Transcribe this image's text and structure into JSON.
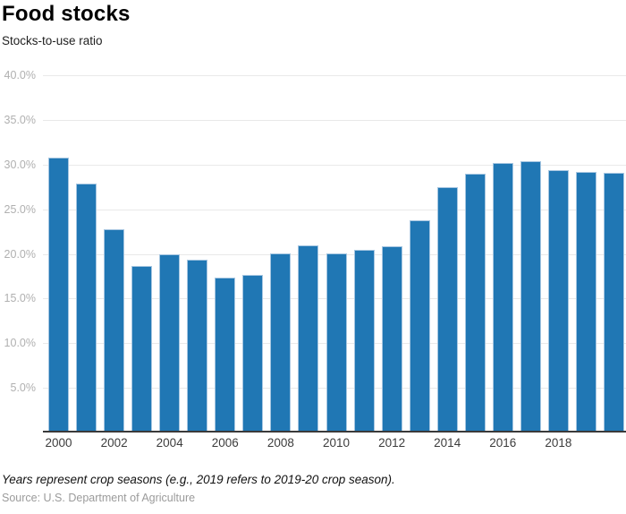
{
  "header": {
    "title": "Food stocks",
    "subtitle": "Stocks-to-use ratio"
  },
  "chart_data": {
    "type": "bar",
    "title": "Food stocks",
    "ylabel": "Stocks-to-use ratio",
    "unit": "percent",
    "categories": [
      2000,
      2001,
      2002,
      2003,
      2004,
      2005,
      2006,
      2007,
      2008,
      2009,
      2010,
      2011,
      2012,
      2013,
      2014,
      2015,
      2016,
      2017,
      2018,
      2019,
      2020
    ],
    "values": [
      30.6,
      27.7,
      22.6,
      18.4,
      19.8,
      19.1,
      17.1,
      17.4,
      19.9,
      20.8,
      19.9,
      20.3,
      20.7,
      23.6,
      27.3,
      28.8,
      30.0,
      30.2,
      29.2,
      29.0,
      28.9
    ],
    "ylim": [
      0,
      40
    ],
    "y_tick_values": [
      40,
      35,
      30,
      25,
      20,
      15,
      10,
      5
    ],
    "y_tick_labels": [
      "40.0%",
      "35.0%",
      "30.0%",
      "25.0%",
      "20.0%",
      "15.0%",
      "10.0%",
      "5.0%"
    ],
    "x_tick_years": [
      2000,
      2002,
      2004,
      2006,
      2008,
      2010,
      2012,
      2014,
      2016,
      2018
    ],
    "grid": true,
    "legend_position": "none",
    "bar_color": "#2077b4"
  },
  "footer": {
    "note": "Years represent crop seasons (e.g., 2019 refers to 2019-20 crop season).",
    "source": "Source: U.S. Department of Agriculture"
  },
  "colors": {
    "bar": "#2077b4",
    "bar_border": "#a6c6e1",
    "grid": "#e9e9e9",
    "y_label": "#b0b0b0",
    "x_label": "#3c3c3c",
    "baseline": "#3a3a3a",
    "title": "#000000",
    "source": "#9b9b9b"
  }
}
